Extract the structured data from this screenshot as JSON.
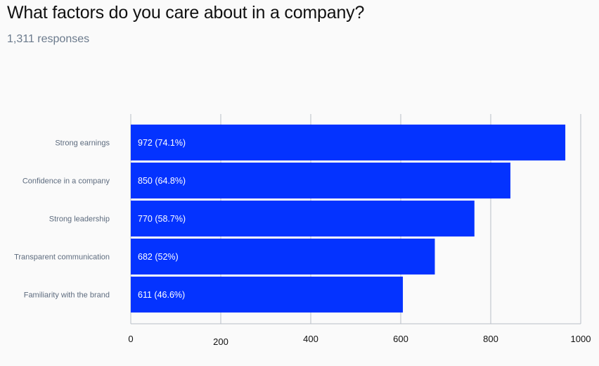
{
  "chart_data": {
    "type": "bar",
    "orientation": "horizontal",
    "title": "What factors do you care about in a company?",
    "subtitle": "1,311 responses",
    "categories": [
      "Strong earnings",
      "Confidence in a company",
      "Strong leadership",
      "Transparent communication",
      "Familiarity with the brand"
    ],
    "values": [
      972,
      850,
      770,
      682,
      611
    ],
    "data_labels": [
      "972 (74.1%)",
      "850 (64.8%)",
      "770 (58.7%)",
      "682 (52%)",
      "611 (46.6%)"
    ],
    "xlim": [
      0,
      1000
    ],
    "xticks": [
      0,
      200,
      400,
      600,
      800,
      1000
    ],
    "xtick_labels": [
      "0",
      "200",
      "400",
      "600",
      "800",
      "1000"
    ],
    "grid": true,
    "bar_color": "#0433ff",
    "grid_color": "#b8bec6"
  }
}
